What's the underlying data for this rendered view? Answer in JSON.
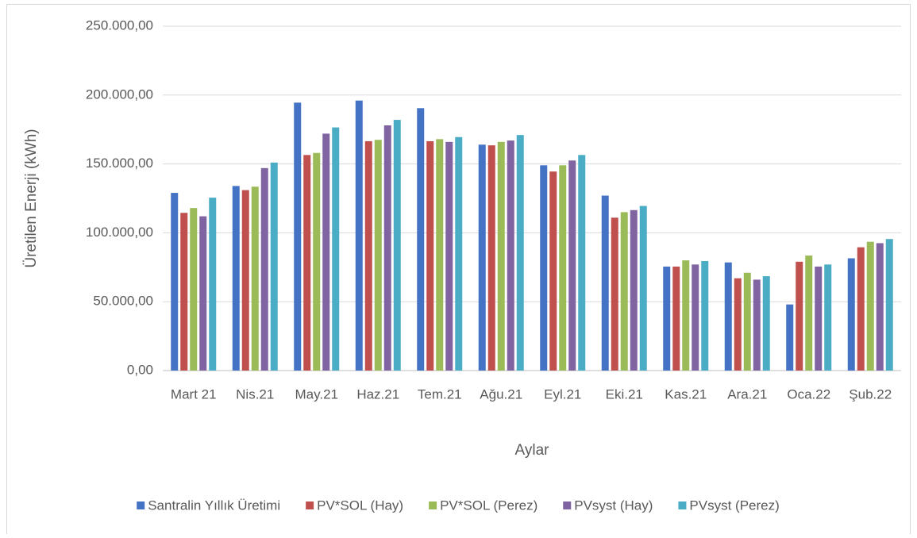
{
  "chart_data": {
    "type": "bar",
    "x_label": "Aylar",
    "y_label": "Üretilen Enerji (kWh)",
    "categories": [
      "Mart 21",
      "Nis.21",
      "May.21",
      "Haz.21",
      "Tem.21",
      "Ağu.21",
      "Eyl.21",
      "Eki.21",
      "Kas.21",
      "Ara.21",
      "Oca.22",
      "Şub.22"
    ],
    "series": [
      {
        "name": "Santralin Yıllık Üretimi",
        "color": "#4472c4",
        "values": [
          129000,
          134000,
          194500,
          196000,
          190500,
          164000,
          149000,
          127000,
          75500,
          78500,
          48000,
          81500
        ]
      },
      {
        "name": "PV*SOL (Hay)",
        "color": "#c0504d",
        "values": [
          114500,
          131000,
          156500,
          166500,
          166500,
          163500,
          144500,
          111000,
          75500,
          67000,
          79000,
          89500
        ]
      },
      {
        "name": "PV*SOL (Perez)",
        "color": "#9bbb59",
        "values": [
          118000,
          133500,
          158000,
          167500,
          168000,
          166000,
          149000,
          115000,
          80000,
          71000,
          83500,
          93500
        ]
      },
      {
        "name": "PVsyst (Hay)",
        "color": "#8064a2",
        "values": [
          112000,
          147000,
          172000,
          178000,
          166000,
          167000,
          152500,
          116500,
          77000,
          66000,
          75500,
          92500
        ]
      },
      {
        "name": "PVsyst (Perez)",
        "color": "#4bacc6",
        "values": [
          125500,
          151000,
          176500,
          182000,
          169500,
          171000,
          156500,
          119500,
          79500,
          68500,
          77000,
          95500
        ]
      }
    ],
    "ylim": [
      0,
      250000
    ],
    "yticks": [
      {
        "value": 0,
        "label": "0,00"
      },
      {
        "value": 50000,
        "label": "50.000,00"
      },
      {
        "value": 100000,
        "label": "100.000,00"
      },
      {
        "value": 150000,
        "label": "150.000,00"
      },
      {
        "value": 200000,
        "label": "200.000,00"
      },
      {
        "value": 250000,
        "label": "250.000,00"
      }
    ],
    "grid": true,
    "legend": "bottom"
  }
}
